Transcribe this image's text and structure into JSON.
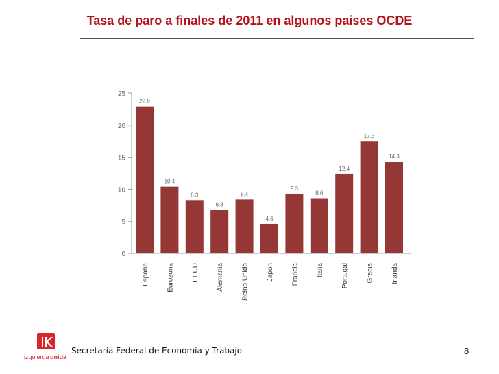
{
  "slide": {
    "title": "Tasa de paro a finales de 2011 en algunos paises OCDE",
    "footer": "Secretaría Federal de Economía y Trabajo",
    "page_number": "8",
    "logo_text_1": "izquierda",
    "logo_text_2": "unida"
  },
  "colors": {
    "title": "#b5121b",
    "bar": "#953735",
    "axis": "#9a9a9a",
    "logo": "#d6272d"
  },
  "chart_data": {
    "type": "bar",
    "title": "",
    "xlabel": "",
    "ylabel": "",
    "ylim": [
      0,
      25
    ],
    "yticks": [
      0,
      5,
      10,
      15,
      20,
      25
    ],
    "categories": [
      "España",
      "Eurozona",
      "EEUU",
      "Alemania",
      "Reino Unido",
      "Japón",
      "Francia",
      "Italia",
      "Portugal",
      "Grecia",
      "Irlanda"
    ],
    "values": [
      22.9,
      10.4,
      8.3,
      6.8,
      8.4,
      4.6,
      9.3,
      8.6,
      12.4,
      17.5,
      14.3
    ],
    "data_labels": [
      "22.9",
      "10.4",
      "8.3",
      "6.8",
      "8.4",
      "4.6",
      "9.3",
      "8.6",
      "12.4",
      "17.5",
      "14.3"
    ],
    "grid": false,
    "legend": "none"
  }
}
